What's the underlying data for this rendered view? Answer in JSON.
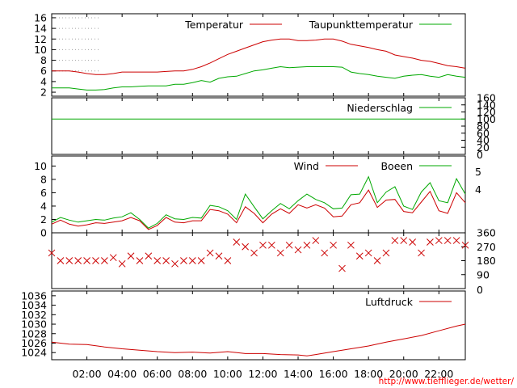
{
  "source_link": "http://www.tiefflieger.de/wetter/",
  "colors": {
    "red": "#cc0000",
    "green": "#00a800",
    "marker": "#cc0000",
    "frame": "#000000"
  },
  "x_axis": {
    "ticks": [
      "02:00",
      "04:00",
      "06:00",
      "08:00",
      "10:00",
      "12:00",
      "14:00",
      "16:00",
      "18:00",
      "20:00",
      "22:00"
    ],
    "tick_hours": [
      2,
      4,
      6,
      8,
      10,
      12,
      14,
      16,
      18,
      20,
      22
    ],
    "range_hours": [
      0,
      23.5
    ]
  },
  "chart_data": [
    {
      "type": "line",
      "ylim": [
        1.4,
        16.6
      ],
      "yticks": [
        2,
        4,
        6,
        8,
        10,
        12,
        14,
        16
      ],
      "grid": "dotted, left part of upper area",
      "legend_position": "top-right",
      "x": [
        0,
        0.5,
        1,
        1.5,
        2,
        2.5,
        3,
        3.5,
        4,
        4.5,
        5,
        5.5,
        6,
        6.5,
        7,
        7.5,
        8,
        8.5,
        9,
        9.5,
        10,
        10.5,
        11,
        11.5,
        12,
        12.5,
        13,
        13.5,
        14,
        14.5,
        15,
        15.5,
        16,
        16.5,
        17,
        17.5,
        18,
        18.5,
        19,
        19.5,
        20,
        20.5,
        21,
        21.5,
        22,
        22.5,
        23,
        23.5
      ],
      "series": [
        {
          "name": "Temperatur",
          "color": "red",
          "values": [
            6.0,
            6.0,
            6.0,
            5.8,
            5.5,
            5.3,
            5.3,
            5.5,
            5.8,
            5.8,
            5.8,
            5.8,
            5.8,
            5.9,
            6.0,
            6.0,
            6.3,
            6.8,
            7.5,
            8.3,
            9.1,
            9.7,
            10.3,
            10.9,
            11.5,
            11.8,
            12.0,
            12.0,
            11.7,
            11.7,
            11.8,
            12.0,
            12.0,
            11.6,
            11.0,
            10.7,
            10.4,
            10.0,
            9.7,
            9.0,
            8.7,
            8.4,
            8.0,
            7.8,
            7.4,
            7.0,
            6.8,
            6.5
          ]
        },
        {
          "name": "Taupunkttemperatur",
          "color": "green",
          "values": [
            2.8,
            2.8,
            2.8,
            2.6,
            2.4,
            2.4,
            2.5,
            2.8,
            3.0,
            3.0,
            3.1,
            3.2,
            3.2,
            3.2,
            3.5,
            3.5,
            3.8,
            4.2,
            3.9,
            4.6,
            4.9,
            5.0,
            5.5,
            6.0,
            6.2,
            6.5,
            6.8,
            6.6,
            6.7,
            6.8,
            6.8,
            6.8,
            6.8,
            6.7,
            5.8,
            5.5,
            5.3,
            5.0,
            4.8,
            4.6,
            5.0,
            5.2,
            5.3,
            5.0,
            4.8,
            5.3,
            5.0,
            4.8
          ]
        }
      ]
    },
    {
      "type": "line",
      "ylim": [
        0,
        160
      ],
      "yticks": [
        20,
        40,
        60,
        80,
        100,
        120,
        140,
        160
      ],
      "ytick_labels_extra": [
        "0"
      ],
      "legend_position": "top-right",
      "series": [
        {
          "name": "Niederschlag",
          "color": "green",
          "constant": 100
        }
      ]
    },
    {
      "type": "line",
      "ylim": [
        0,
        11.5
      ],
      "yticks": [
        0,
        2,
        4,
        6,
        8,
        10
      ],
      "right_axis_ticks": [
        "4",
        "5"
      ],
      "legend_position": "top-right",
      "x": [
        0,
        0.5,
        1,
        1.5,
        2,
        2.5,
        3,
        3.5,
        4,
        4.5,
        5,
        5.5,
        6,
        6.5,
        7,
        7.5,
        8,
        8.5,
        9,
        9.5,
        10,
        10.5,
        11,
        11.5,
        12,
        12.5,
        13,
        13.5,
        14,
        14.5,
        15,
        15.5,
        16,
        16.5,
        17,
        17.5,
        18,
        18.5,
        19,
        19.5,
        20,
        20.5,
        21,
        21.5,
        22,
        22.5,
        23,
        23.5
      ],
      "series": [
        {
          "name": "Wind",
          "color": "red",
          "values": [
            1.3,
            1.9,
            1.3,
            1.0,
            1.2,
            1.5,
            1.4,
            1.6,
            1.8,
            2.3,
            1.8,
            0.5,
            1.1,
            2.3,
            1.6,
            1.5,
            1.8,
            1.8,
            3.5,
            3.3,
            2.8,
            1.5,
            3.9,
            2.9,
            1.5,
            2.8,
            3.6,
            2.9,
            4.2,
            3.7,
            4.2,
            3.7,
            2.4,
            2.5,
            4.2,
            4.5,
            6.4,
            3.8,
            4.9,
            5.0,
            3.2,
            3.0,
            4.6,
            6.2,
            3.3,
            2.9,
            6.0,
            4.5
          ]
        },
        {
          "name": "Boeen",
          "color": "green",
          "values": [
            1.6,
            2.3,
            1.9,
            1.6,
            1.8,
            2.0,
            1.9,
            2.2,
            2.4,
            3.0,
            2.0,
            0.7,
            1.4,
            2.7,
            2.1,
            2.0,
            2.3,
            2.2,
            4.1,
            3.9,
            3.3,
            2.0,
            5.8,
            3.9,
            2.1,
            3.3,
            4.4,
            3.6,
            4.8,
            5.8,
            5.0,
            4.5,
            3.6,
            3.7,
            5.7,
            5.8,
            8.4,
            4.5,
            6.1,
            6.9,
            4.0,
            3.5,
            6.1,
            7.5,
            4.8,
            4.5,
            8.1,
            5.8
          ]
        }
      ]
    },
    {
      "type": "scatter",
      "ylim": [
        0,
        360
      ],
      "yticks": [
        0,
        90,
        180,
        270,
        360
      ],
      "marker": "x",
      "x": [
        0,
        0.5,
        1,
        1.5,
        2,
        2.5,
        3,
        3.5,
        4,
        4.5,
        5,
        5.5,
        6,
        6.5,
        7,
        7.5,
        8,
        8.5,
        9,
        9.5,
        10,
        10.5,
        11,
        11.5,
        12,
        12.5,
        13,
        13.5,
        14,
        14.5,
        15,
        15.5,
        16,
        16.5,
        17,
        17.5,
        18,
        18.5,
        19,
        19.5,
        20,
        20.5,
        21,
        21.5,
        22,
        22.5,
        23,
        23.5
      ],
      "values": [
        230,
        180,
        180,
        180,
        180,
        180,
        180,
        200,
        160,
        210,
        180,
        210,
        180,
        180,
        160,
        180,
        180,
        180,
        230,
        210,
        180,
        300,
        270,
        230,
        280,
        280,
        230,
        280,
        250,
        280,
        310,
        230,
        280,
        130,
        280,
        210,
        230,
        180,
        230,
        310,
        310,
        300,
        230,
        300,
        310,
        310,
        310,
        280
      ]
    },
    {
      "type": "line",
      "ylim": [
        1022.5,
        1037.0
      ],
      "yticks": [
        1024,
        1026,
        1028,
        1030,
        1032,
        1034,
        1036
      ],
      "legend_position": "top-right",
      "x": [
        0,
        1,
        2,
        3,
        4,
        5,
        6,
        7,
        8,
        9,
        10,
        11,
        12,
        13,
        14,
        14.5,
        15,
        16,
        17,
        18,
        19,
        20,
        21,
        22,
        23,
        23.5
      ],
      "series": [
        {
          "name": "Luftdruck",
          "color": "red",
          "values": [
            1026.2,
            1025.8,
            1025.7,
            1025.2,
            1024.8,
            1024.5,
            1024.2,
            1024.0,
            1024.1,
            1023.9,
            1024.2,
            1023.8,
            1023.8,
            1023.6,
            1023.5,
            1023.3,
            1023.6,
            1024.2,
            1024.8,
            1025.4,
            1026.2,
            1026.9,
            1027.6,
            1028.6,
            1029.6,
            1030.0
          ]
        }
      ]
    }
  ]
}
